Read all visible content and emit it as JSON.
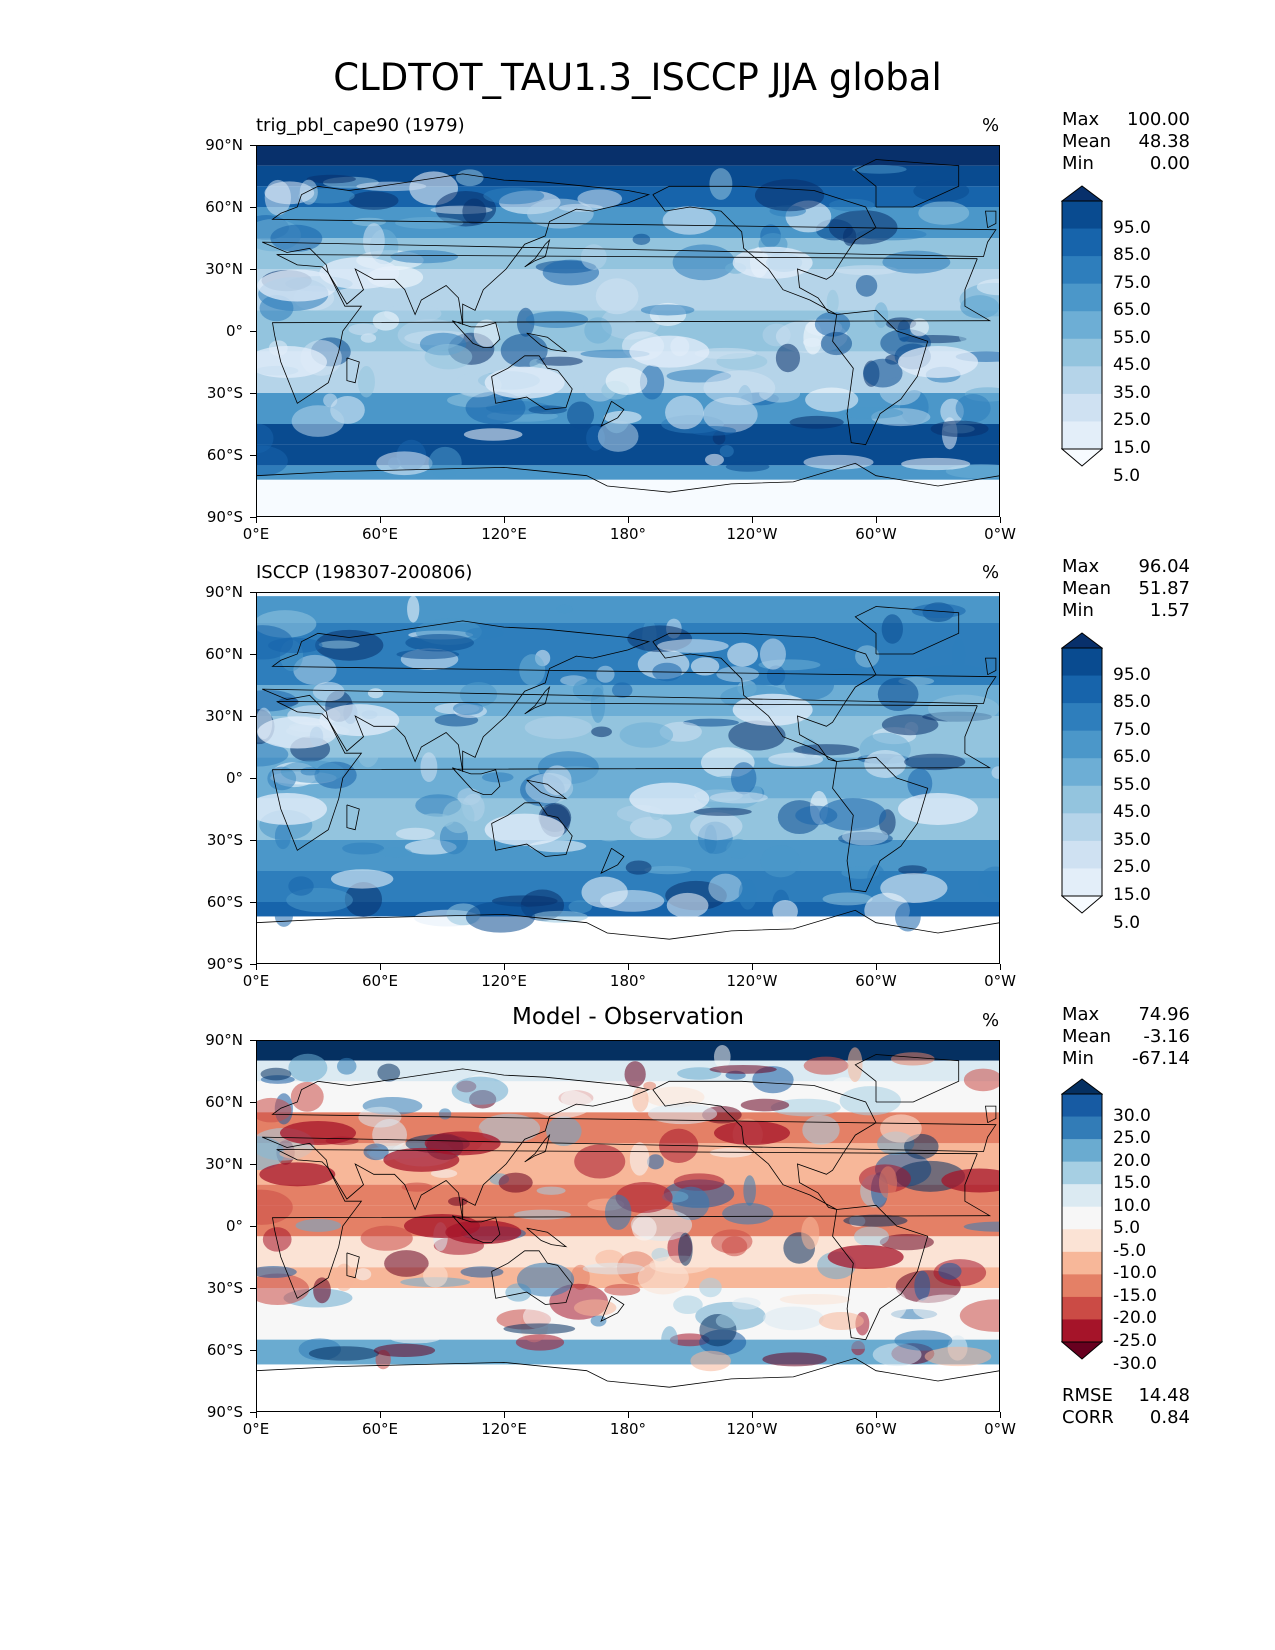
{
  "figure_title": "CLDTOT_TAU1.3_ISCCP JJA global",
  "chart_data": [
    {
      "type": "heatmap",
      "title": "trig_pbl_cape90 (1979)",
      "units": "%",
      "stats": {
        "max_label": "Max",
        "max": "100.00",
        "mean_label": "Mean",
        "mean": "48.38",
        "min_label": "Min",
        "min": "0.00"
      },
      "colorbar": {
        "colormap": "Blues",
        "levels": [
          0,
          5,
          15,
          25,
          35,
          45,
          55,
          65,
          75,
          85,
          95,
          100
        ],
        "tick_labels": [
          "95.0",
          "85.0",
          "75.0",
          "65.0",
          "55.0",
          "45.0",
          "35.0",
          "25.0",
          "15.0",
          "5.0"
        ],
        "extend": "both"
      },
      "lon_range": [
        0,
        360
      ],
      "lat_range": [
        -90,
        90
      ]
    },
    {
      "type": "heatmap",
      "title": "ISCCP (198307-200806)",
      "units": "%",
      "stats": {
        "max_label": "Max",
        "max": "96.04",
        "mean_label": "Mean",
        "mean": "51.87",
        "min_label": "Min",
        "min": "1.57"
      },
      "colorbar": {
        "colormap": "Blues",
        "levels": [
          0,
          5,
          15,
          25,
          35,
          45,
          55,
          65,
          75,
          85,
          95,
          100
        ],
        "tick_labels": [
          "95.0",
          "85.0",
          "75.0",
          "65.0",
          "55.0",
          "45.0",
          "35.0",
          "25.0",
          "15.0",
          "5.0"
        ],
        "extend": "both"
      },
      "lon_range": [
        0,
        360
      ],
      "lat_range": [
        -90,
        90
      ]
    },
    {
      "type": "heatmap",
      "title": "Model - Observation",
      "units": "%",
      "stats": {
        "max_label": "Max",
        "max": "74.96",
        "mean_label": "Mean",
        "mean": "-3.16",
        "min_label": "Min",
        "min": "-67.14"
      },
      "metrics": {
        "rmse_label": "RMSE",
        "rmse": "14.48",
        "corr_label": "CORR",
        "corr": "0.84"
      },
      "colorbar": {
        "colormap": "RdBu",
        "levels": [
          -30,
          -25,
          -20,
          -15,
          -10,
          -5,
          5,
          10,
          15,
          20,
          25,
          30
        ],
        "tick_labels": [
          "30.0",
          "25.0",
          "20.0",
          "15.0",
          "10.0",
          "5.0",
          "-5.0",
          "-10.0",
          "-15.0",
          "-20.0",
          "-25.0",
          "-30.0"
        ],
        "extend": "both"
      },
      "lon_range": [
        0,
        360
      ],
      "lat_range": [
        -90,
        90
      ]
    }
  ],
  "axes": {
    "lat_ticks": [
      "90°N",
      "60°N",
      "30°N",
      "0°",
      "30°S",
      "60°S",
      "90°S"
    ],
    "lon_ticks": [
      "0°E",
      "60°E",
      "120°E",
      "180°",
      "120°W",
      "60°W",
      "0°W"
    ]
  },
  "colors": {
    "blues": [
      "#f7fbff",
      "#e3eef9",
      "#cfe1f2",
      "#b5d4e9",
      "#93c4de",
      "#6daed5",
      "#4b97c9",
      "#2e7ebc",
      "#1764ab",
      "#094b90",
      "#08306b"
    ],
    "rdbu": [
      "#67001f",
      "#a51429",
      "#cb4b45",
      "#e48066",
      "#f7b799",
      "#fbe3d5",
      "#f7f7f7",
      "#dbeaf2",
      "#a6cfe3",
      "#6aabd0",
      "#327cb7",
      "#175ba3",
      "#053061"
    ],
    "land_line": "#000000"
  }
}
